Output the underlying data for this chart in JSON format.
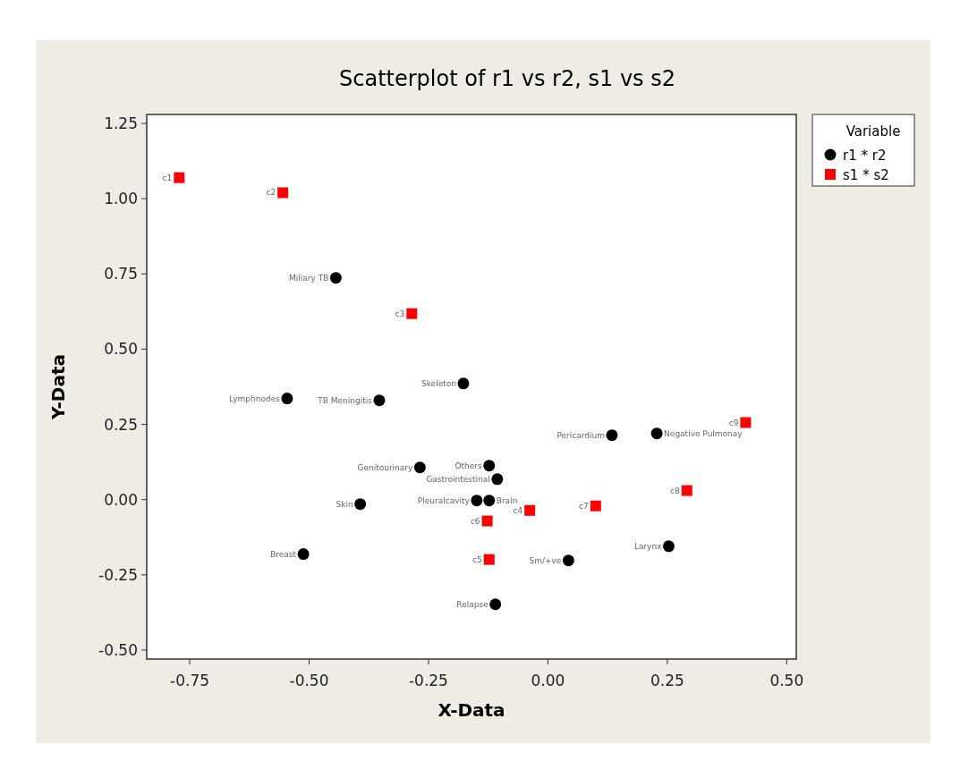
{
  "chart_data": {
    "type": "scatter",
    "title": "Scatterplot of r1 vs r2, s1 vs s2",
    "xlabel": "X-Data",
    "ylabel": "Y-Data",
    "legend_title": "Variable",
    "legend": "top right",
    "xlim": [
      -0.84,
      0.52
    ],
    "xticks": [
      -0.75,
      {
        "value": -0.5,
        "label": "-0.50"
      },
      -0.25,
      {
        "value": 0,
        "label": "0.00"
      },
      0.25,
      {
        "value": 0.5,
        "label": "0.50"
      }
    ],
    "ylim": [
      -0.53,
      1.28
    ],
    "yticks": [
      {
        "value": -0.5,
        "label": "-0.50"
      },
      -0.25,
      {
        "value": 0,
        "label": "0.00"
      },
      0.25,
      {
        "value": 0.5,
        "label": "0.50"
      },
      0.75,
      {
        "value": 1,
        "label": "1.00"
      },
      1.25
    ],
    "series": [
      {
        "name": "r1 * r2",
        "color": "#000000",
        "marker": "circle",
        "x": [
          -0.444,
          -0.546,
          -0.353,
          -0.177,
          -0.268,
          -0.123,
          -0.106,
          -0.123,
          -0.149,
          -0.393,
          -0.512,
          -0.11,
          0.043,
          0.134,
          0.228,
          0.253
        ],
        "values": [
          0.737,
          0.336,
          0.33,
          0.386,
          0.107,
          0.113,
          0.068,
          -0.003,
          -0.003,
          -0.015,
          -0.181,
          -0.348,
          -0.202,
          0.214,
          0.22,
          -0.155
        ]
      },
      {
        "name": "s1 * s2",
        "color": "#ff0000",
        "marker": "square",
        "x": [
          -0.772,
          -0.555,
          -0.285,
          -0.038,
          -0.123,
          -0.127,
          0.1,
          0.291,
          0.414
        ],
        "values": [
          1.07,
          1.02,
          0.618,
          -0.036,
          -0.199,
          -0.071,
          -0.021,
          0.03,
          0.256
        ]
      }
    ],
    "annotations": [
      {
        "text": "Miliary TB",
        "x": -0.444,
        "y": 0.737
      },
      {
        "text": "Lymphnodes",
        "x": -0.546,
        "y": 0.336
      },
      {
        "text": "TB Meningitis",
        "x": -0.353,
        "y": 0.33
      },
      {
        "text": "Skeleton",
        "x": -0.177,
        "y": 0.386
      },
      {
        "text": "Genitourinary",
        "x": -0.268,
        "y": 0.107
      },
      {
        "text": "Others",
        "x": -0.123,
        "y": 0.113
      },
      {
        "text": "Gastrointestinal",
        "x": -0.106,
        "y": 0.068
      },
      {
        "text": "Brain",
        "x": -0.123,
        "y": -0.003
      },
      {
        "text": "Pleuralcavity",
        "x": -0.149,
        "y": -0.003
      },
      {
        "text": "Skin",
        "x": -0.393,
        "y": -0.015
      },
      {
        "text": "Breast",
        "x": -0.512,
        "y": -0.181
      },
      {
        "text": "Relapse",
        "x": -0.11,
        "y": -0.348
      },
      {
        "text": "Sm/+ve",
        "x": 0.043,
        "y": -0.202
      },
      {
        "text": "Pericardium",
        "x": 0.134,
        "y": 0.214
      },
      {
        "text": "Negative Pulmonay",
        "x": 0.228,
        "y": 0.22
      },
      {
        "text": "Larynx",
        "x": 0.253,
        "y": -0.155
      },
      {
        "text": "c1",
        "x": -0.772,
        "y": 1.07
      },
      {
        "text": "c2",
        "x": -0.555,
        "y": 1.02
      },
      {
        "text": "c3",
        "x": -0.285,
        "y": 0.618
      },
      {
        "text": "c4",
        "x": -0.038,
        "y": -0.036
      },
      {
        "text": "c5",
        "x": -0.123,
        "y": -0.199
      },
      {
        "text": "c6",
        "x": -0.127,
        "y": -0.071
      },
      {
        "text": "c7",
        "x": 0.1,
        "y": -0.021
      },
      {
        "text": "c8",
        "x": 0.291,
        "y": 0.03
      },
      {
        "text": "c9",
        "x": 0.414,
        "y": 0.256
      }
    ]
  }
}
